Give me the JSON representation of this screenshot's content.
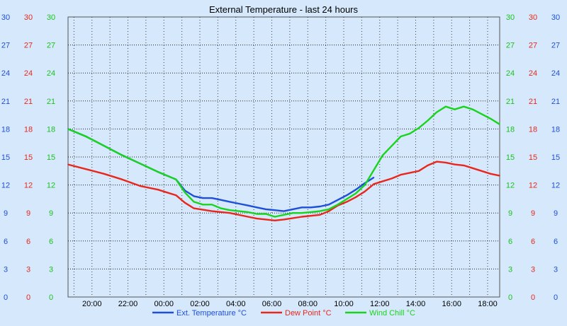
{
  "chart_data": {
    "type": "line",
    "title": "External Temperature - last 24 hours",
    "xlabel": "",
    "ylabel": "",
    "x_tick_labels": [
      "20:00",
      "22:00",
      "00:00",
      "02:00",
      "04:00",
      "06:00",
      "08:00",
      "10:00",
      "12:00",
      "14:00",
      "16:00",
      "18:00"
    ],
    "x_ticks_hours_from_start": [
      1.33,
      3.33,
      5.33,
      7.33,
      9.33,
      11.33,
      13.33,
      15.33,
      17.33,
      19.33,
      21.33,
      23.33
    ],
    "x_range_hours": [
      0,
      24
    ],
    "ylim": [
      0,
      30
    ],
    "y_tick_labels": [
      "0",
      "3",
      "6",
      "9",
      "12",
      "15",
      "18",
      "21",
      "24",
      "27",
      "30"
    ],
    "grid": true,
    "legend_position": "bottom",
    "series": [
      {
        "name": "Ext. Temperature °C",
        "color": "#1f4fd8",
        "axis_color": "#1f4fd8",
        "x": [
          0,
          1,
          2,
          3,
          4,
          5,
          6,
          6.5,
          7,
          7.5,
          8,
          8.5,
          9,
          9.5,
          10,
          10.5,
          11,
          11.5,
          12,
          12.5,
          13,
          13.5,
          14,
          14.5,
          15,
          15.5,
          16,
          16.5,
          17
        ],
        "y": [
          18,
          17.2,
          16.2,
          15.2,
          14.3,
          13.4,
          12.6,
          11.4,
          10.8,
          10.6,
          10.6,
          10.4,
          10.2,
          10.0,
          9.8,
          9.6,
          9.4,
          9.3,
          9.2,
          9.4,
          9.6,
          9.6,
          9.7,
          9.9,
          10.4,
          10.9,
          11.5,
          12.2,
          12.8
        ]
      },
      {
        "name": "Dew Point °C",
        "color": "#e8281c",
        "axis_color": "#e8281c",
        "x": [
          0,
          1,
          2,
          3,
          4,
          5,
          5.5,
          6,
          6.5,
          7,
          8,
          9,
          10,
          10.5,
          11,
          11.5,
          12,
          13,
          14,
          14.5,
          15,
          15.5,
          16,
          16.5,
          17,
          17.5,
          18,
          18.5,
          19,
          19.5,
          20,
          20.5,
          21,
          21.5,
          22,
          22.5,
          23,
          23.5,
          24
        ],
        "y": [
          14.2,
          13.7,
          13.2,
          12.6,
          11.9,
          11.5,
          11.2,
          10.9,
          10.1,
          9.5,
          9.2,
          9.0,
          8.6,
          8.4,
          8.3,
          8.2,
          8.3,
          8.6,
          8.8,
          9.2,
          9.8,
          10.2,
          10.7,
          11.3,
          12.1,
          12.4,
          12.7,
          13.1,
          13.3,
          13.5,
          14.1,
          14.5,
          14.4,
          14.2,
          14.1,
          13.8,
          13.5,
          13.2,
          13.0
        ]
      },
      {
        "name": "Wind Chill °C",
        "color": "#19d41d",
        "axis_color": "#19c21d",
        "x": [
          0,
          1,
          2,
          3,
          4,
          5,
          6,
          6.5,
          7,
          7.5,
          8,
          8.5,
          9,
          9.5,
          10,
          10.5,
          11,
          11.5,
          12,
          12.5,
          13,
          13.5,
          14,
          14.5,
          15,
          15.5,
          16,
          16.5,
          17,
          17.5,
          18,
          18.5,
          19,
          19.5,
          20,
          20.5,
          21,
          21.5,
          22,
          22.5,
          23,
          23.5,
          24
        ],
        "y": [
          18,
          17.2,
          16.2,
          15.2,
          14.3,
          13.4,
          12.6,
          11.2,
          10.2,
          9.9,
          9.9,
          9.5,
          9.3,
          9.2,
          9.1,
          8.9,
          8.9,
          8.6,
          8.8,
          9.0,
          9.0,
          9.1,
          9.2,
          9.4,
          9.9,
          10.5,
          11.1,
          12.0,
          13.6,
          15.2,
          16.2,
          17.2,
          17.5,
          18.1,
          18.9,
          19.8,
          20.4,
          20.1,
          20.4,
          20.1,
          19.6,
          19.1,
          18.5
        ]
      }
    ]
  }
}
